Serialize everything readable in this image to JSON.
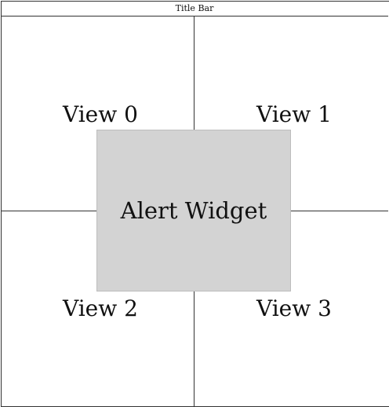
{
  "title_bar": {
    "label": "Title Bar"
  },
  "views": [
    {
      "label": "View 0"
    },
    {
      "label": "View 1"
    },
    {
      "label": "View 2"
    },
    {
      "label": "View 3"
    }
  ],
  "alert_widget": {
    "label": "Alert Widget",
    "fill": "#d3d3d3"
  }
}
